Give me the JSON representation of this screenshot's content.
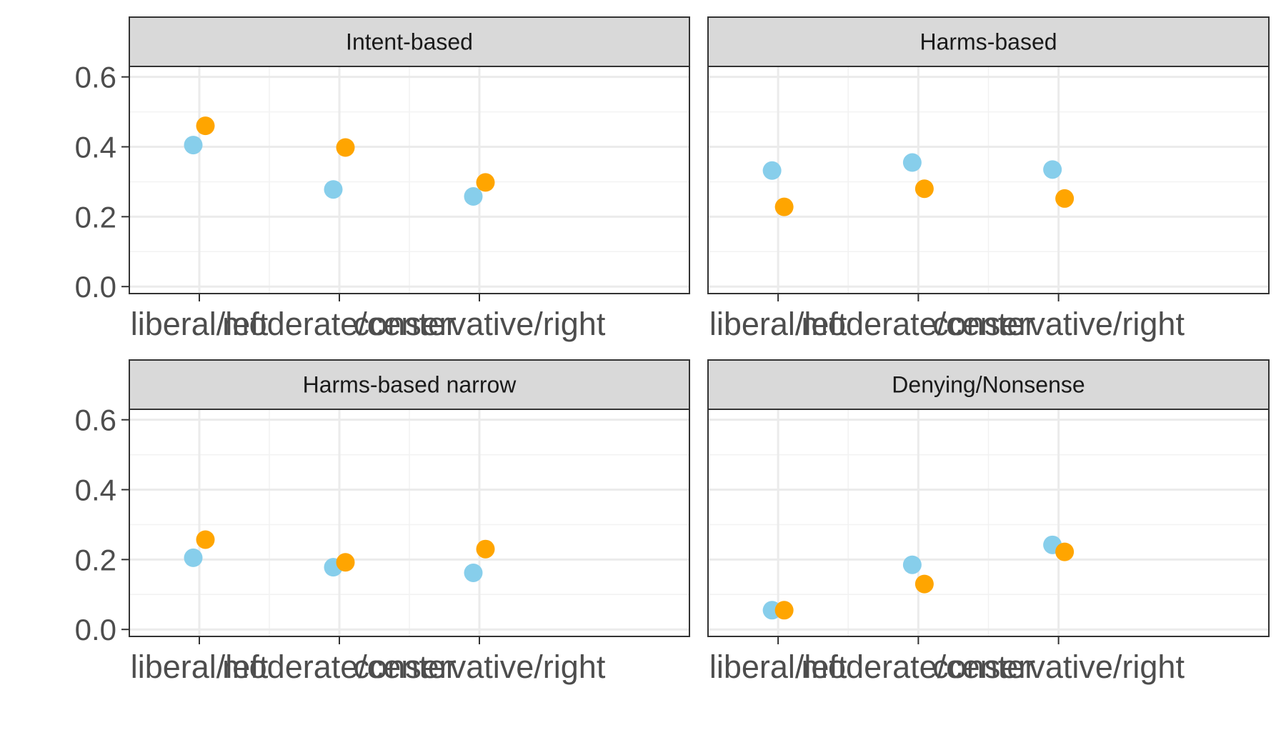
{
  "chart_data": {
    "type": "scatter",
    "facets": [
      "Intent-based",
      "Harms-based",
      "Harms-based narrow",
      "Denying/Nonsense"
    ],
    "categories": [
      "liberal/left",
      "moderate/center",
      "conservative/right"
    ],
    "ylim": [
      -0.02,
      0.63
    ],
    "yticks": [
      0.0,
      0.2,
      0.4,
      0.6
    ],
    "ytick_labels": [
      "0.0",
      "0.2",
      "0.4",
      "0.6"
    ],
    "grid": true,
    "legend": "none",
    "series": [
      {
        "color": "#87ceeb",
        "values": {
          "Intent-based": [
            0.405,
            0.278,
            0.258
          ],
          "Harms-based": [
            0.332,
            0.355,
            0.335
          ],
          "Harms-based narrow": [
            0.205,
            0.178,
            0.162
          ],
          "Denying/Nonsense": [
            0.055,
            0.185,
            0.242
          ]
        }
      },
      {
        "color": "#ffa500",
        "values": {
          "Intent-based": [
            0.46,
            0.398,
            0.298
          ],
          "Harms-based": [
            0.228,
            0.28,
            0.252
          ],
          "Harms-based narrow": [
            0.257,
            0.192,
            0.23
          ],
          "Denying/Nonsense": [
            0.055,
            0.13,
            0.222
          ]
        }
      }
    ]
  }
}
